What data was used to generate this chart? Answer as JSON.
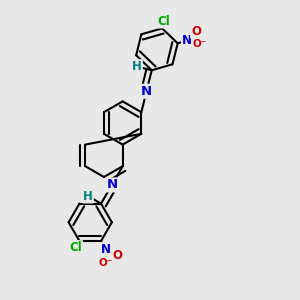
{
  "bg_color": "#e8e8e8",
  "bond_color": "#000000",
  "bond_width": 1.5,
  "atom_colors": {
    "C": "#000000",
    "N": "#0000cc",
    "O": "#cc0000",
    "Cl": "#00aa00",
    "H": "#008080"
  },
  "font_size": 8.5
}
